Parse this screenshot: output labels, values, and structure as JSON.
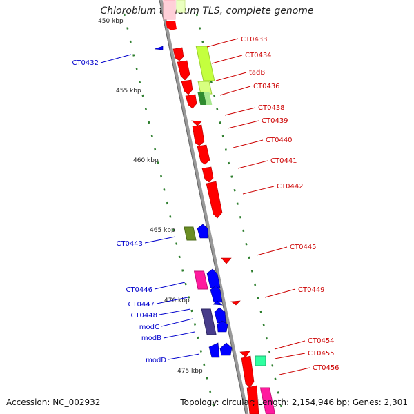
{
  "title": "Chlorobium tepidum TLS, complete genome",
  "accession": "Accession: NC_002932",
  "topology": "Topology: circular; Length: 2,154,946 bp; Genes: 2,301",
  "kbp_labels": [
    "450 kbp",
    "455 kbp",
    "460 kbp",
    "465 kbp",
    "470 kbp",
    "475 kbp"
  ],
  "labels_right": [
    "CT0433",
    "CT0434",
    "tadB",
    "CT0436",
    "CT0438",
    "CT0439",
    "CT0440",
    "CT0441",
    "CT0442",
    "CT0445",
    "CT0449",
    "CT0454",
    "CT0455",
    "CT0456"
  ],
  "labels_left": [
    "CT0432",
    "CT0443",
    "CT0446",
    "CT0447",
    "CT0448",
    "modC",
    "modB",
    "modD"
  ],
  "colors": {
    "forward_label": "#cc0000",
    "reverse_label": "#0000cc",
    "backbone": "#888888",
    "tick": "#2f7f2f"
  }
}
